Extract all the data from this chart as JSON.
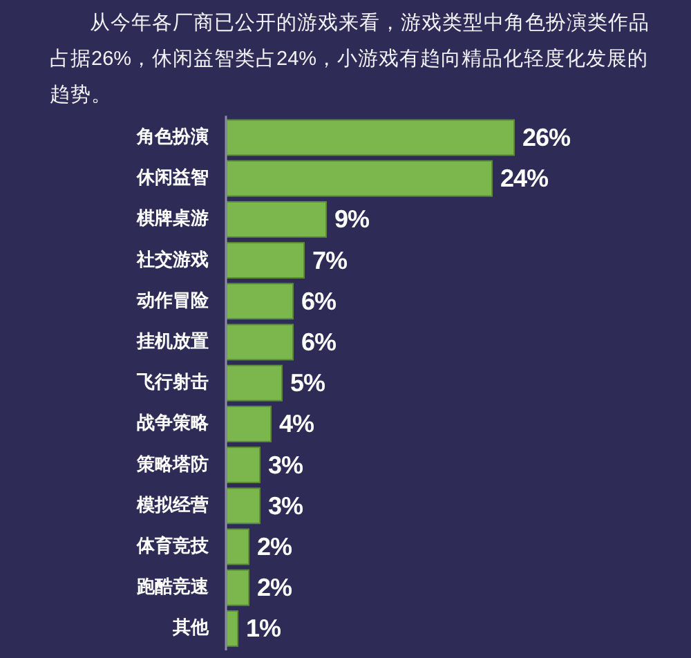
{
  "chart_data": {
    "type": "bar",
    "orientation": "horizontal",
    "title": "从今年各厂商已公开的游戏来看，游戏类型中角色扮演类作品占据26%，休闲益智类占24%，小游戏有趋向精品化轻度化发展的趋势。",
    "categories": [
      "角色扮演",
      "休闲益智",
      "棋牌桌游",
      "社交游戏",
      "动作冒险",
      "挂机放置",
      "飞行射击",
      "战争策略",
      "策略塔防",
      "模拟经营",
      "体育竞技",
      "跑酷竞速",
      "其他"
    ],
    "values": [
      26,
      24,
      9,
      7,
      6,
      6,
      5,
      4,
      3,
      3,
      2,
      2,
      1
    ],
    "value_labels": [
      "26%",
      "24%",
      "9%",
      "7%",
      "6%",
      "6%",
      "5%",
      "4%",
      "3%",
      "3%",
      "2%",
      "2%",
      "1%"
    ],
    "color": "#7cb74d",
    "tick_labels": "y"
  }
}
